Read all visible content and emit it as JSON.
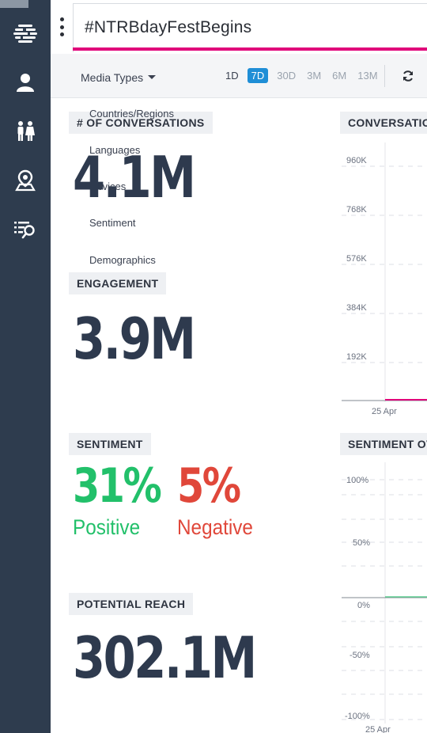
{
  "search": {
    "query": "#NTRBdayFestBegins"
  },
  "toolbar": {
    "media_types_label": "Media Types",
    "ranges": [
      "1D",
      "7D",
      "30D",
      "3M",
      "6M",
      "13M"
    ],
    "active_range": "7D"
  },
  "dropdown": {
    "items": [
      "Countries/Regions",
      "Languages",
      "Devices",
      "Sentiment",
      "Demographics"
    ]
  },
  "cards": {
    "conversations": {
      "label": "# OF CONVERSATIONS",
      "value": "4.1M"
    },
    "engagement": {
      "label": "ENGAGEMENT",
      "value": "3.9M"
    },
    "sentiment": {
      "label": "SENTIMENT",
      "positive_pct": "31%",
      "positive_word": "Positive",
      "negative_pct": "5%",
      "negative_word": "Negative"
    },
    "reach": {
      "label": "POTENTIAL REACH",
      "value": "302.1M"
    }
  },
  "charts": {
    "conversations": {
      "label": "CONVERSATIONS",
      "y_ticks": [
        "960K",
        "768K",
        "576K",
        "384K",
        "192K"
      ],
      "x_tick": "25 Apr"
    },
    "sentiment": {
      "label": "SENTIMENT OVER TIME",
      "y_ticks": [
        "100%",
        "50%",
        "0%",
        "-50%",
        "-100%"
      ],
      "x_tick": "25 Apr"
    }
  },
  "colors": {
    "sidebar": "#2e3c4e",
    "accent_pink": "#e0007a",
    "active_blue": "#1f8ed6",
    "positive": "#22c06a",
    "negative": "#e0473a",
    "number_dark": "#2e3a4e"
  },
  "icons": {
    "sidebar": [
      "stream-icon",
      "person-icon",
      "people-icon",
      "location-pin-icon",
      "list-search-icon"
    ],
    "toolbar": [
      "refresh-icon"
    ]
  }
}
